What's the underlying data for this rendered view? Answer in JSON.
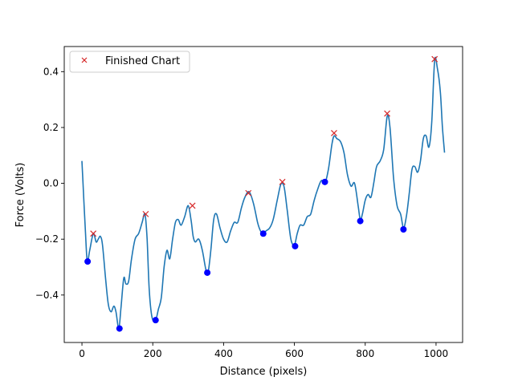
{
  "chart_data": {
    "type": "line",
    "title": "",
    "xlabel": "Distance (pixels)",
    "ylabel": "Force (Volts)",
    "xlim": [
      -50,
      1075
    ],
    "ylim": [
      -0.57,
      0.49
    ],
    "xticks": [
      0,
      200,
      400,
      600,
      800,
      1000
    ],
    "yticks": [
      -0.4,
      -0.2,
      0.0,
      0.2,
      0.4
    ],
    "xtick_labels": [
      "0",
      "200",
      "400",
      "600",
      "800",
      "1000"
    ],
    "ytick_labels": [
      "−0.4",
      "−0.2",
      "0.0",
      "0.2",
      "0.4"
    ],
    "grid": false,
    "legend": {
      "position": "upper-left",
      "entries": [
        "Finished Chart"
      ]
    },
    "colors": {
      "line": "#1f77b4",
      "peaks": "#d62728",
      "valleys": "#0000ff"
    },
    "series": [
      {
        "kind": "line",
        "x": [
          0,
          5,
          10,
          15,
          22,
          32,
          40,
          46,
          52,
          58,
          66,
          74,
          82,
          90,
          96,
          104,
          110,
          118,
          124,
          132,
          140,
          150,
          160,
          170,
          178,
          184,
          190,
          198,
          208,
          216,
          224,
          232,
          240,
          248,
          256,
          264,
          272,
          280,
          290,
          300,
          308,
          314,
          320,
          330,
          340,
          350,
          356,
          364,
          372,
          380,
          390,
          400,
          410,
          420,
          430,
          440,
          450,
          460,
          472,
          484,
          496,
          504,
          512,
          520,
          530,
          540,
          550,
          560,
          566,
          572,
          580,
          590,
          600,
          608,
          616,
          626,
          636,
          646,
          656,
          666,
          676,
          686,
          696,
          706,
          712,
          720,
          730,
          740,
          750,
          760,
          770,
          780,
          786,
          792,
          800,
          808,
          816,
          824,
          832,
          842,
          852,
          862,
          870,
          880,
          890,
          900,
          908,
          916,
          924,
          932,
          940,
          948,
          956,
          964,
          972,
          980,
          988,
          996,
          1004,
          1012,
          1018,
          1024
        ],
        "y": [
          0.08,
          -0.05,
          -0.18,
          -0.28,
          -0.24,
          -0.18,
          -0.21,
          -0.2,
          -0.19,
          -0.22,
          -0.33,
          -0.43,
          -0.46,
          -0.44,
          -0.46,
          -0.52,
          -0.45,
          -0.34,
          -0.36,
          -0.35,
          -0.27,
          -0.2,
          -0.18,
          -0.14,
          -0.11,
          -0.2,
          -0.38,
          -0.48,
          -0.49,
          -0.45,
          -0.41,
          -0.3,
          -0.24,
          -0.27,
          -0.2,
          -0.14,
          -0.13,
          -0.15,
          -0.12,
          -0.08,
          -0.13,
          -0.19,
          -0.21,
          -0.2,
          -0.24,
          -0.31,
          -0.32,
          -0.24,
          -0.13,
          -0.11,
          -0.16,
          -0.2,
          -0.21,
          -0.17,
          -0.14,
          -0.14,
          -0.09,
          -0.05,
          -0.03,
          -0.07,
          -0.14,
          -0.17,
          -0.18,
          -0.17,
          -0.16,
          -0.13,
          -0.07,
          -0.01,
          0.0,
          -0.02,
          -0.1,
          -0.2,
          -0.22,
          -0.18,
          -0.15,
          -0.15,
          -0.12,
          -0.11,
          -0.06,
          -0.02,
          0.01,
          0.0,
          0.05,
          0.14,
          0.17,
          0.16,
          0.15,
          0.11,
          0.03,
          -0.01,
          0.0,
          -0.08,
          -0.13,
          -0.11,
          -0.06,
          -0.04,
          -0.05,
          0.0,
          0.06,
          0.08,
          0.12,
          0.24,
          0.2,
          0.02,
          -0.08,
          -0.11,
          -0.16,
          -0.12,
          -0.04,
          0.05,
          0.06,
          0.04,
          0.08,
          0.16,
          0.17,
          0.13,
          0.22,
          0.44,
          0.41,
          0.33,
          0.2,
          0.11
        ]
      },
      {
        "kind": "markers-x",
        "legend": "Finished Chart",
        "x": [
          32,
          180,
          312,
          470,
          566,
          712,
          862,
          996
        ],
        "y": [
          -0.18,
          -0.11,
          -0.08,
          -0.035,
          0.005,
          0.18,
          0.25,
          0.445
        ]
      },
      {
        "kind": "markers-dot",
        "x": [
          16,
          106,
          208,
          354,
          512,
          602,
          686,
          786,
          908
        ],
        "y": [
          -0.28,
          -0.52,
          -0.49,
          -0.32,
          -0.18,
          -0.225,
          0.005,
          -0.135,
          -0.165
        ]
      }
    ]
  }
}
